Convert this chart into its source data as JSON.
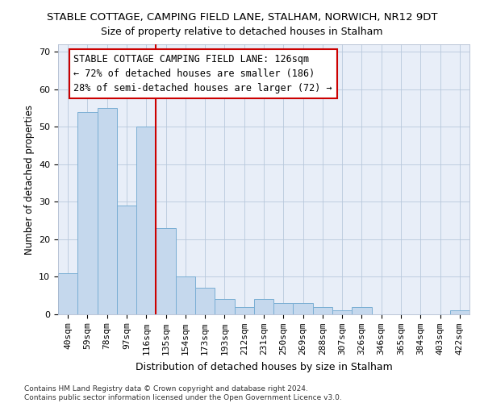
{
  "title1": "STABLE COTTAGE, CAMPING FIELD LANE, STALHAM, NORWICH, NR12 9DT",
  "title2": "Size of property relative to detached houses in Stalham",
  "xlabel": "Distribution of detached houses by size in Stalham",
  "ylabel": "Number of detached properties",
  "footnote": "Contains HM Land Registry data © Crown copyright and database right 2024.\nContains public sector information licensed under the Open Government Licence v3.0.",
  "categories": [
    "40sqm",
    "59sqm",
    "78sqm",
    "97sqm",
    "116sqm",
    "135sqm",
    "154sqm",
    "173sqm",
    "193sqm",
    "212sqm",
    "231sqm",
    "250sqm",
    "269sqm",
    "288sqm",
    "307sqm",
    "326sqm",
    "346sqm",
    "365sqm",
    "384sqm",
    "403sqm",
    "422sqm"
  ],
  "values": [
    11,
    54,
    55,
    29,
    50,
    23,
    10,
    7,
    4,
    2,
    4,
    3,
    3,
    2,
    1,
    2,
    0,
    0,
    0,
    0,
    1
  ],
  "bar_color": "#c5d8ed",
  "bar_edge_color": "#7aaed4",
  "property_line_x": 4.5,
  "annotation_title": "STABLE COTTAGE CAMPING FIELD LANE: 126sqm",
  "annotation_line1": "← 72% of detached houses are smaller (186)",
  "annotation_line2": "28% of semi-detached houses are larger (72) →",
  "ref_line_color": "#cc0000",
  "background_color": "#e8eef8",
  "ylim": [
    0,
    72
  ],
  "yticks": [
    0,
    10,
    20,
    30,
    40,
    50,
    60,
    70
  ],
  "title1_fontsize": 9.5,
  "title2_fontsize": 9.0,
  "xlabel_fontsize": 9.0,
  "ylabel_fontsize": 8.5,
  "tick_fontsize": 8.0,
  "footnote_fontsize": 6.5,
  "annotation_fontsize": 8.5
}
